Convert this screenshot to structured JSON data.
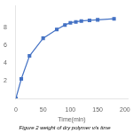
{
  "chart_data": {
    "type": "line",
    "title": "Figure 2 weight of dry polymer v/s time",
    "xlabel": "Time(min)",
    "x": [
      0,
      10,
      25,
      50,
      75,
      90,
      100,
      110,
      120,
      135,
      150,
      180
    ],
    "values": [
      0,
      2.2,
      4.8,
      6.8,
      7.8,
      8.3,
      8.55,
      8.65,
      8.75,
      8.82,
      8.88,
      9.0
    ],
    "color": "#4472C4",
    "marker": "square",
    "xlim": [
      0,
      205
    ],
    "xticks": [
      0,
      50,
      100,
      150,
      200
    ],
    "ylim": [
      0,
      10.5
    ],
    "yticks": [
      2,
      4,
      6,
      8
    ],
    "grid": false
  }
}
